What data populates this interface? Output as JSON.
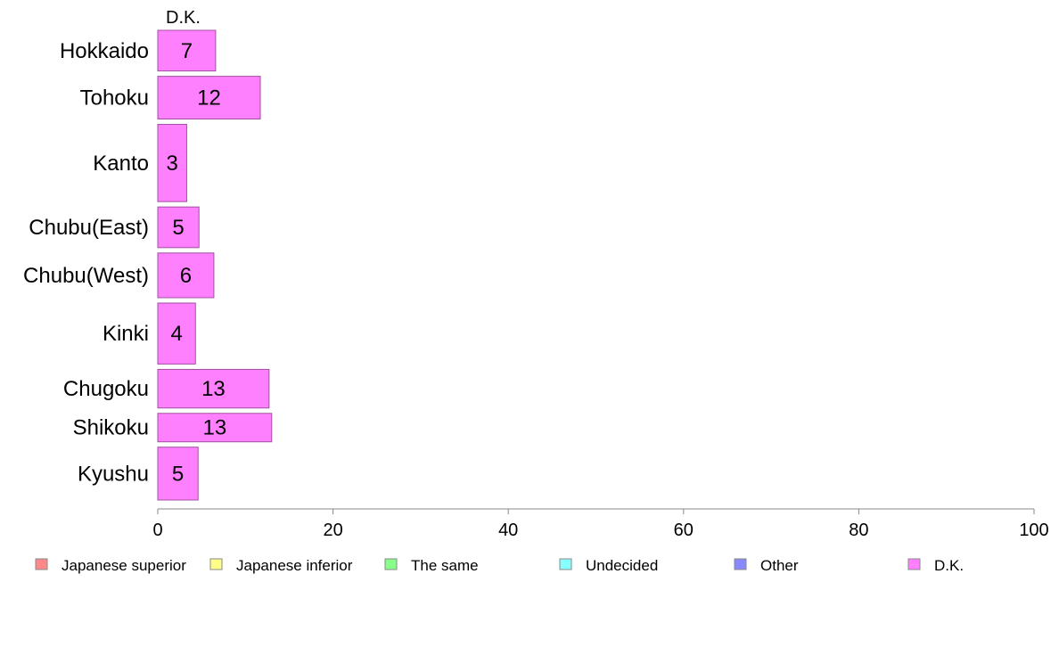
{
  "chart_data": {
    "type": "bar",
    "orientation": "horizontal",
    "categories": [
      "Hokkaido",
      "Tohoku",
      "Kanto",
      "Chubu(East)",
      "Chubu(West)",
      "Kinki",
      "Chugoku",
      "Shikoku",
      "Kyushu"
    ],
    "column_label": "D.K.",
    "series": [
      {
        "name": "D.K.",
        "values": [
          6.6,
          11.7,
          3.3,
          4.7,
          6.4,
          4.3,
          12.7,
          13.0,
          4.6
        ],
        "labels": [
          "7",
          "12",
          "3",
          "5",
          "6",
          "4",
          "13",
          "13",
          "5"
        ]
      }
    ],
    "relative_weights": [
      1.0,
      1.05,
      1.9,
      1.0,
      1.1,
      1.5,
      0.95,
      0.7,
      1.3
    ],
    "xlim": [
      0,
      100
    ],
    "xticks": [
      "0",
      "20",
      "40",
      "60",
      "80",
      "100"
    ],
    "legend": [
      {
        "label": "Japanese superior",
        "color": "#ff8888"
      },
      {
        "label": "Japanese inferior",
        "color": "#ffff88"
      },
      {
        "label": "The same",
        "color": "#88ff88"
      },
      {
        "label": "Undecided",
        "color": "#88ffff"
      },
      {
        "label": "Other",
        "color": "#8888ff"
      },
      {
        "label": "D.K.",
        "color": "#ff80ff"
      }
    ],
    "legend_position": "bottom",
    "bar_color": "#ff80ff",
    "grid": false
  }
}
